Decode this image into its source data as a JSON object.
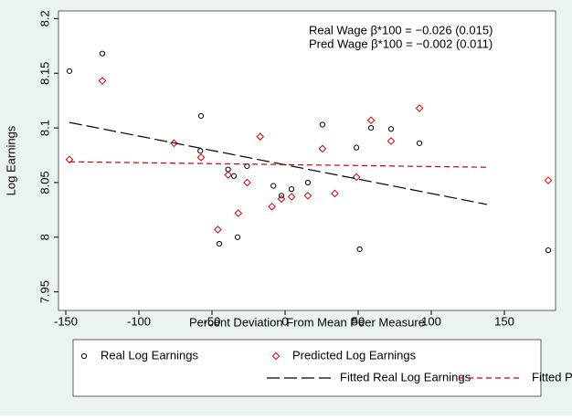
{
  "chart_data": {
    "type": "scatter",
    "xlabel": "Percent Deviation From Mean Peer Measure",
    "ylabel": "Log Earnings",
    "annotations": [
      "Real Wage β*100 = −0.026 (0.015)",
      "Pred Wage β*100 = −0.002 (0.011)"
    ],
    "xlim": [
      -155,
      185
    ],
    "xticks": [
      -150,
      -100,
      -50,
      0,
      50,
      100,
      150
    ],
    "ylim": [
      7.933,
      8.207
    ],
    "yticks": [
      7.95,
      8,
      8.05,
      8.1,
      8.15,
      8.2
    ],
    "series": [
      {
        "name": "Real Log Earnings",
        "color": "#000000",
        "marker": "circle",
        "x": [
          -147.5,
          -125,
          -57.5,
          -58,
          -39,
          -35,
          -45,
          -32.5,
          -26,
          -8,
          -2.5,
          4.4,
          15.6,
          25.6,
          48.8,
          58.8,
          72.5,
          91.9,
          51,
          180
        ],
        "values": [
          8.152,
          8.168,
          8.111,
          8.079,
          8.062,
          8.056,
          7.994,
          8.0,
          8.065,
          8.047,
          8.038,
          8.044,
          8.05,
          8.103,
          8.082,
          8.1,
          8.099,
          8.086,
          7.989,
          7.988
        ]
      },
      {
        "name": "Predicted Log Earnings",
        "color": "#cc0000",
        "marker": "diamond",
        "x": [
          -147.5,
          -125,
          -76,
          -57.5,
          -39,
          -32,
          -46,
          -26,
          -17,
          -9,
          -2.5,
          4.4,
          15.6,
          25.6,
          34,
          48.8,
          58.8,
          72.5,
          91.9,
          180
        ],
        "values": [
          8.071,
          8.143,
          8.086,
          8.073,
          8.057,
          8.022,
          8.007,
          8.05,
          8.092,
          8.028,
          8.035,
          8.037,
          8.038,
          8.081,
          8.04,
          8.055,
          8.107,
          8.088,
          8.118,
          8.052
        ]
      },
      {
        "name": "Fitted Real Log Earnings",
        "color": "#000000",
        "marker": "none",
        "dash": "long",
        "x": [
          -147.5,
          138
        ],
        "values": [
          8.105,
          8.03
        ]
      },
      {
        "name": "Fitted Predicted Log Earnings",
        "color": "#cc0000",
        "marker": "none",
        "dash": "short",
        "x": [
          -147.5,
          138
        ],
        "values": [
          8.069,
          8.064
        ]
      }
    ]
  }
}
